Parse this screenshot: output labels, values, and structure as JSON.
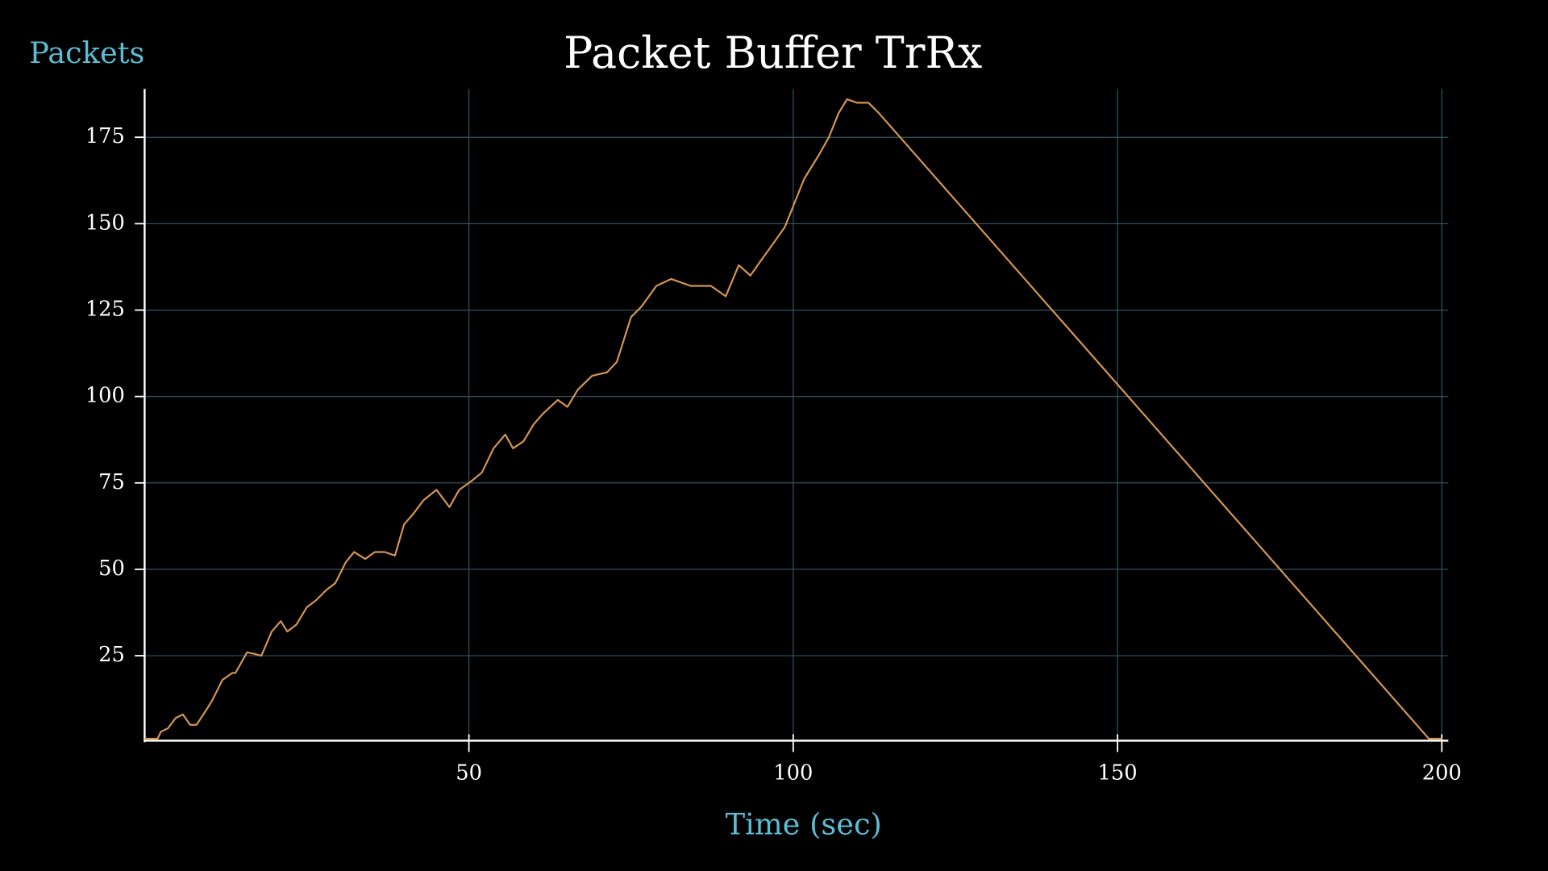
{
  "chart_data": {
    "type": "line",
    "title": "Packet Buffer TrRx",
    "y_label": "Packets",
    "x_label": "Time (sec)",
    "color": "#d49550",
    "x": [
      0,
      2,
      2.5,
      3.6,
      4.8,
      5.9,
      7,
      8,
      9.4,
      10.4,
      12,
      13.5,
      14,
      15.8,
      17,
      18,
      19.6,
      21,
      22,
      23.4,
      25,
      26.4,
      28,
      29.4,
      31,
      32.3,
      34,
      35.5,
      37,
      38.6,
      40,
      41.4,
      43,
      45,
      47,
      48.5,
      50,
      50.7,
      52,
      53.8,
      55.6,
      56.8,
      58.4,
      60,
      61.4,
      63.7,
      65.2,
      66.8,
      69,
      71.3,
      72.8,
      75,
      76.6,
      78.9,
      81.2,
      84.2,
      87.3,
      89.6,
      91.6,
      93.4,
      94.9,
      97.2,
      98.7,
      100.2,
      101.7,
      104,
      105.5,
      107,
      108.3,
      109.8,
      111.6,
      113.2,
      150,
      198,
      200
    ],
    "values": [
      1,
      1,
      3,
      4,
      7,
      8,
      5,
      5,
      9,
      12,
      18,
      20,
      20,
      26,
      25.5,
      25,
      32,
      35,
      32,
      34,
      39,
      41,
      44,
      46,
      52,
      55,
      53,
      55,
      55,
      54,
      63,
      66,
      70,
      73,
      68,
      73,
      75,
      76,
      78,
      85,
      89,
      85,
      87,
      92,
      95,
      99,
      97,
      102,
      106,
      107,
      110,
      123,
      126,
      132,
      134,
      132,
      132,
      129,
      138,
      135,
      139,
      145,
      149,
      156,
      163,
      170,
      175,
      182,
      186,
      185,
      185,
      182,
      103.5,
      1,
      1
    ],
    "xlim": [
      0,
      201
    ],
    "ylim": [
      0,
      189
    ],
    "xticks": [
      50,
      100,
      150,
      200
    ],
    "yticks": [
      25,
      50,
      75,
      100,
      125,
      150,
      175
    ],
    "grid": true
  }
}
